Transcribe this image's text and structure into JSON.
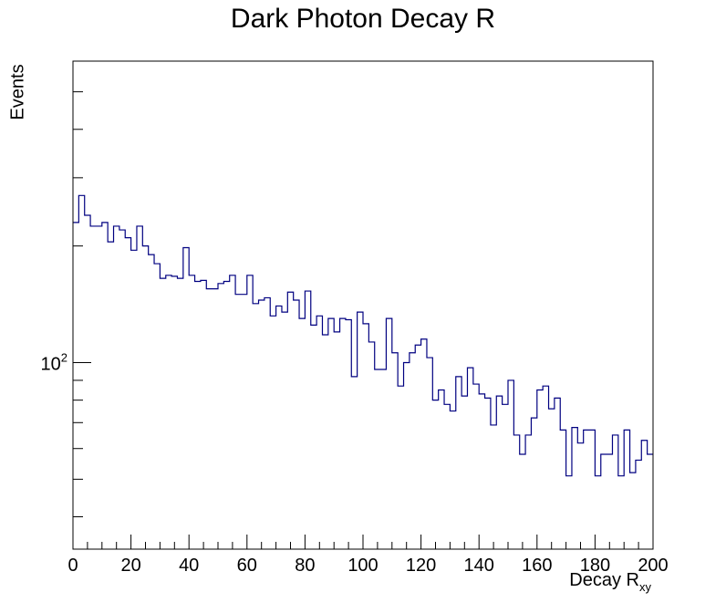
{
  "chart_data": {
    "type": "histogram",
    "title": "Dark Photon Decay R",
    "xlabel_main": "Decay R",
    "xlabel_sub": "xy",
    "ylabel": "Events",
    "xlim": [
      0,
      200
    ],
    "ylim": [
      33,
      600
    ],
    "yscale": "log",
    "bin_width": 2,
    "x_ticks": [
      0,
      20,
      40,
      60,
      80,
      100,
      120,
      140,
      160,
      180,
      200
    ],
    "y_tick_label": {
      "base": "10",
      "exp": "2",
      "value": 100
    },
    "line_color": "#000080",
    "values": [
      230,
      270,
      240,
      225,
      225,
      230,
      205,
      225,
      220,
      210,
      195,
      225,
      200,
      190,
      180,
      165,
      168,
      167,
      165,
      198,
      168,
      162,
      163,
      155,
      155,
      160,
      162,
      168,
      150,
      150,
      168,
      142,
      145,
      147,
      132,
      140,
      135,
      152,
      145,
      130,
      153,
      125,
      132,
      118,
      130,
      120,
      130,
      129,
      92,
      135,
      126,
      113,
      96,
      96,
      130,
      106,
      87,
      100,
      106,
      111,
      115,
      103,
      80,
      85,
      78,
      75,
      92,
      82,
      97,
      88,
      83,
      81,
      69,
      82,
      78,
      90,
      65,
      58,
      65,
      72,
      85,
      87,
      76,
      81,
      67,
      51,
      68,
      62,
      67,
      67,
      51,
      58,
      58,
      65,
      51,
      67,
      52,
      56,
      63,
      58
    ]
  }
}
